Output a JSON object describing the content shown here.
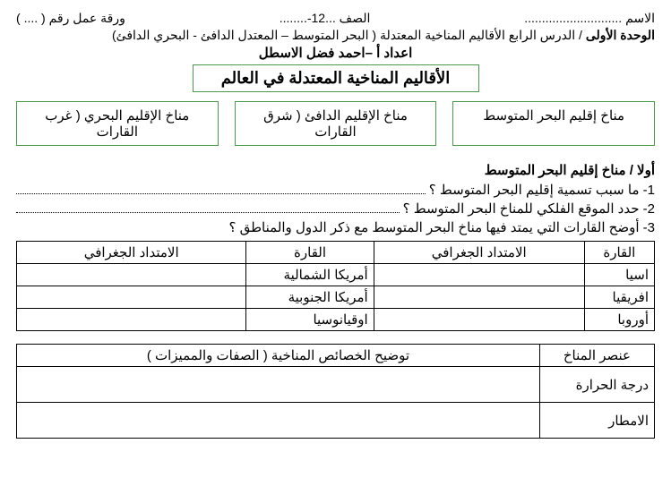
{
  "header": {
    "name_label": "الاسم ............................",
    "grade_label": "الصف ...12-........",
    "sheet_label": "ورقة عمل رقم ( .... )"
  },
  "unit_line_bold": "الوحدة الأولى",
  "unit_line_rest": " / الدرس الرابع الأقاليم المناخية المعتدلة ( البحر المتوسط – المعتدل الدافئ - البحري الدافئ)",
  "prep": "اعداد  أ –احمد فضل الاسطل",
  "main_title": "الأقاليم المناخية المعتدلة في العالم",
  "boxes": {
    "b1": "مناخ إقليم البحر المتوسط",
    "b2": "مناخ الإقليم الدافئ ( شرق القارات",
    "b3": "مناخ الإقليم البحري ( غرب القارات"
  },
  "section1_title": "أولا / مناخ إقليم البحر المتوسط",
  "q1": "1- ما سبب تسمية إقليم البحر المتوسط ؟",
  "q2": "2- حدد الموقع الفلكي للمناخ البحر المتوسط ؟",
  "q3": "3- أوضح القارات التي يمتد فيها مناخ البحر المتوسط مع ذكر الدول والمناطق ؟",
  "table1": {
    "headers": {
      "c1": "القارة",
      "c2": "الامتداد الجغرافي",
      "c3": "القارة",
      "c4": "الامتداد الجغرافي"
    },
    "rows": [
      {
        "a": "اسيا",
        "b": "",
        "c": "أمريكا الشمالية",
        "d": ""
      },
      {
        "a": "افريقيا",
        "b": "",
        "c": "أمريكا الجنوبية",
        "d": ""
      },
      {
        "a": "أوروبا",
        "b": "",
        "c": "اوقيانوسيا",
        "d": ""
      }
    ]
  },
  "table2": {
    "headers": {
      "c1": "عنصر المناخ",
      "c2": "توضيح الخصائص المناخية ( الصفات والمميزات )"
    },
    "rows": [
      {
        "a": "درجة الحرارة",
        "b": ""
      },
      {
        "a": "الامطار",
        "b": ""
      }
    ]
  },
  "colors": {
    "box_border": "#4a9a4a",
    "text": "#000000",
    "bg": "#ffffff"
  }
}
